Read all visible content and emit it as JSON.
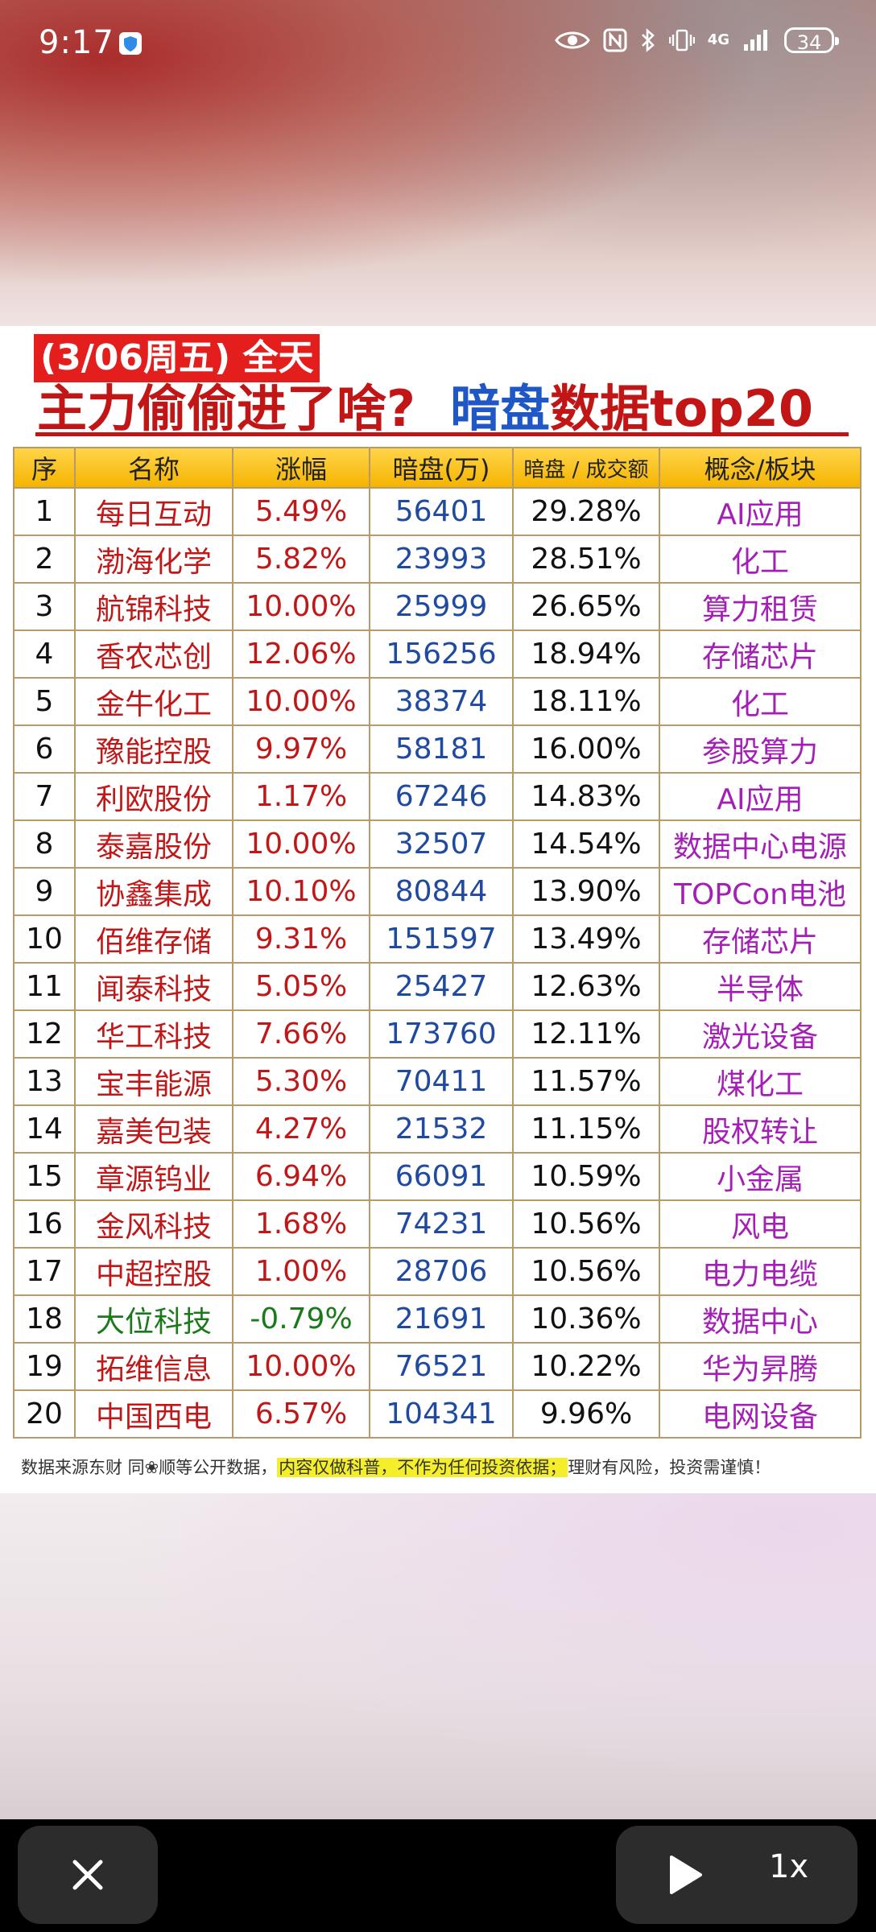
{
  "status_bar": {
    "time": "9:17",
    "network": "4G",
    "battery": "34"
  },
  "card": {
    "title_tag": "(3/06周五) 全天",
    "title_red": "主力偷偷进了啥?",
    "title_blue": "暗盘",
    "title_red2": "数据top20",
    "columns": [
      "序",
      "名称",
      "涨幅",
      "暗盘(万)",
      "暗盘 / 成交额",
      "概念/板块"
    ],
    "rows": [
      {
        "idx": "1",
        "name": "每日互动",
        "chg": "5.49%",
        "dark": "56401",
        "ratio": "29.28%",
        "concept": "AI应用"
      },
      {
        "idx": "2",
        "name": "渤海化学",
        "chg": "5.82%",
        "dark": "23993",
        "ratio": "28.51%",
        "concept": "化工"
      },
      {
        "idx": "3",
        "name": "航锦科技",
        "chg": "10.00%",
        "dark": "25999",
        "ratio": "26.65%",
        "concept": "算力租赁"
      },
      {
        "idx": "4",
        "name": "香农芯创",
        "chg": "12.06%",
        "dark": "156256",
        "ratio": "18.94%",
        "concept": "存储芯片"
      },
      {
        "idx": "5",
        "name": "金牛化工",
        "chg": "10.00%",
        "dark": "38374",
        "ratio": "18.11%",
        "concept": "化工"
      },
      {
        "idx": "6",
        "name": "豫能控股",
        "chg": "9.97%",
        "dark": "58181",
        "ratio": "16.00%",
        "concept": "参股算力"
      },
      {
        "idx": "7",
        "name": "利欧股份",
        "chg": "1.17%",
        "dark": "67246",
        "ratio": "14.83%",
        "concept": "AI应用"
      },
      {
        "idx": "8",
        "name": "泰嘉股份",
        "chg": "10.00%",
        "dark": "32507",
        "ratio": "14.54%",
        "concept": "数据中心电源"
      },
      {
        "idx": "9",
        "name": "协鑫集成",
        "chg": "10.10%",
        "dark": "80844",
        "ratio": "13.90%",
        "concept": "TOPCon电池"
      },
      {
        "idx": "10",
        "name": "佰维存储",
        "chg": "9.31%",
        "dark": "151597",
        "ratio": "13.49%",
        "concept": "存储芯片"
      },
      {
        "idx": "11",
        "name": "闻泰科技",
        "chg": "5.05%",
        "dark": "25427",
        "ratio": "12.63%",
        "concept": "半导体"
      },
      {
        "idx": "12",
        "name": "华工科技",
        "chg": "7.66%",
        "dark": "173760",
        "ratio": "12.11%",
        "concept": "激光设备"
      },
      {
        "idx": "13",
        "name": "宝丰能源",
        "chg": "5.30%",
        "dark": "70411",
        "ratio": "11.57%",
        "concept": "煤化工"
      },
      {
        "idx": "14",
        "name": "嘉美包装",
        "chg": "4.27%",
        "dark": "21532",
        "ratio": "11.15%",
        "concept": "股权转让"
      },
      {
        "idx": "15",
        "name": "章源钨业",
        "chg": "6.94%",
        "dark": "66091",
        "ratio": "10.59%",
        "concept": "小金属"
      },
      {
        "idx": "16",
        "name": "金风科技",
        "chg": "1.68%",
        "dark": "74231",
        "ratio": "10.56%",
        "concept": "风电"
      },
      {
        "idx": "17",
        "name": "中超控股",
        "chg": "1.00%",
        "dark": "28706",
        "ratio": "10.56%",
        "concept": "电力电缆"
      },
      {
        "idx": "18",
        "name": "大位科技",
        "chg": "-0.79%",
        "dark": "21691",
        "ratio": "10.36%",
        "concept": "数据中心",
        "negative": true
      },
      {
        "idx": "19",
        "name": "拓维信息",
        "chg": "10.00%",
        "dark": "76521",
        "ratio": "10.22%",
        "concept": "华为昇腾"
      },
      {
        "idx": "20",
        "name": "中国西电",
        "chg": "6.57%",
        "dark": "104341",
        "ratio": "9.96%",
        "concept": "电网设备"
      }
    ],
    "disclaimer_pre": "数据来源东财 同❀顺等公开数据，",
    "disclaimer_highlight": "内容仅做科普，不作为任何投资依据；",
    "disclaimer_post": "理财有风险，投资需谨慎！"
  },
  "player": {
    "speed": "1x"
  },
  "colors": {
    "red": "#c01818",
    "blue_numbers": "#1f4aa0",
    "purple_concept": "#a41fb5",
    "header_gold": "#f5b400",
    "highlight_yellow": "#f4ef2a",
    "negative_green": "#1a7a1a"
  }
}
